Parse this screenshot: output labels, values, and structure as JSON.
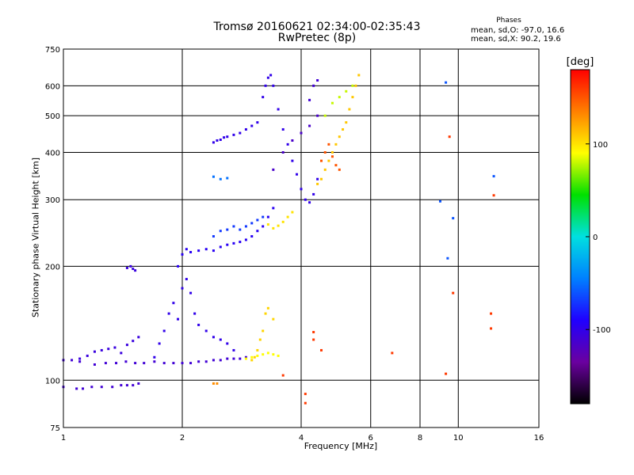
{
  "header": {
    "title_line1": "Tromsø 20160621 02:34:00-02:35:43",
    "title_line2": "RwPretec (8p)",
    "stats_heading": "Phases",
    "stats_o": "mean, sd,O: -97.0, 16.6",
    "stats_x": "mean, sd,X:  90.2, 19.6"
  },
  "chart_data": {
    "type": "scatter",
    "xlabel": "Frequency [MHz]",
    "ylabel": "Stationary phase Virtual Height [km]",
    "xscale": "log",
    "yscale": "log",
    "xlim": [
      1,
      16
    ],
    "ylim": [
      75,
      750
    ],
    "x_ticks": [
      1,
      2,
      4,
      6,
      8,
      10,
      16
    ],
    "x_tick_labels": [
      "1",
      "2",
      "4",
      "6",
      "8",
      "10",
      "16"
    ],
    "y_ticks": [
      75,
      100,
      200,
      300,
      400,
      500,
      600,
      750
    ],
    "y_tick_labels": [
      "75",
      "100",
      "200",
      "300",
      "400",
      "500",
      "600",
      "750"
    ],
    "grid": true,
    "colorbar": {
      "label": "[deg]",
      "range": [
        -180,
        180
      ],
      "ticks": [
        100,
        0,
        -100
      ],
      "tick_labels": [
        "100",
        "0",
        "-100"
      ],
      "colors": [
        "#000000",
        "#6a00a0",
        "#2000ff",
        "#0080ff",
        "#00e0e0",
        "#00e000",
        "#ffff00",
        "#ff8000",
        "#ff0000"
      ]
    },
    "series": [
      {
        "x": [
          1.0,
          1.08,
          1.12,
          1.18,
          1.25,
          1.33,
          1.4,
          1.45,
          1.5,
          1.55
        ],
        "y": [
          96,
          95,
          95,
          96,
          96,
          96,
          97,
          97,
          97,
          98
        ],
        "phase": -110
      },
      {
        "x": [
          1.0,
          1.05,
          1.1
        ],
        "y": [
          113,
          113,
          112
        ],
        "phase": -110
      },
      {
        "x": [
          1.1,
          1.15,
          1.2,
          1.25,
          1.3,
          1.35,
          1.4,
          1.45,
          1.5,
          1.55
        ],
        "y": [
          114,
          116,
          119,
          120,
          121,
          122,
          118,
          124,
          127,
          130
        ],
        "phase": -105
      },
      {
        "x": [
          1.2,
          1.28,
          1.36,
          1.44,
          1.52,
          1.6,
          1.7,
          1.8,
          1.9,
          2.0,
          2.1,
          2.2,
          2.3,
          2.4,
          2.5,
          2.6,
          2.7,
          2.8,
          2.9
        ],
        "y": [
          110,
          111,
          111,
          112,
          111,
          111,
          112,
          111,
          111,
          111,
          111,
          112,
          112,
          113,
          113,
          114,
          114,
          114,
          115
        ],
        "phase": -110
      },
      {
        "x": [
          1.7,
          1.75,
          1.8,
          1.85,
          1.9,
          1.95,
          2.0,
          2.05,
          2.1,
          2.15,
          2.2,
          2.3,
          2.4,
          2.5,
          2.6,
          2.7
        ],
        "y": [
          115,
          125,
          135,
          150,
          160,
          145,
          175,
          185,
          170,
          150,
          140,
          135,
          130,
          128,
          125,
          120
        ],
        "phase": -100
      },
      {
        "x": [
          1.45,
          1.48,
          1.5,
          1.52
        ],
        "y": [
          198,
          200,
          197,
          195
        ],
        "phase": -105
      },
      {
        "x": [
          1.95,
          2.0,
          2.05,
          2.1,
          2.2,
          2.3,
          2.4,
          2.5,
          2.6,
          2.7,
          2.8,
          2.9,
          3.0,
          3.1,
          3.2,
          3.3,
          3.4
        ],
        "y": [
          200,
          215,
          222,
          218,
          220,
          222,
          220,
          225,
          228,
          230,
          232,
          235,
          240,
          248,
          255,
          270,
          285
        ],
        "phase": -95
      },
      {
        "x": [
          2.4,
          2.5,
          2.6,
          2.7,
          2.8,
          2.9,
          3.0,
          3.1,
          3.2
        ],
        "y": [
          240,
          248,
          250,
          255,
          250,
          255,
          260,
          265,
          270
        ],
        "phase": -70
      },
      {
        "x": [
          2.4,
          2.45,
          2.5,
          2.55,
          2.6,
          2.7,
          2.8,
          2.9,
          3.0
        ],
        "y": [
          425,
          430,
          432,
          438,
          440,
          445,
          450,
          460,
          470
        ],
        "phase": -100
      },
      {
        "x": [
          2.4,
          2.5,
          2.6
        ],
        "y": [
          345,
          340,
          342
        ],
        "phase": -50
      },
      {
        "x": [
          3.1,
          3.2,
          3.25,
          3.3,
          3.35,
          3.4,
          3.5,
          3.6,
          3.7,
          3.8,
          3.9,
          4.0,
          4.1,
          4.2,
          4.3,
          4.4
        ],
        "y": [
          480,
          560,
          600,
          630,
          640,
          600,
          520,
          460,
          420,
          380,
          350,
          320,
          300,
          295,
          310,
          340
        ],
        "phase": -100
      },
      {
        "x": [
          3.4,
          3.6,
          3.8,
          4.0,
          4.2,
          4.4
        ],
        "y": [
          360,
          400,
          430,
          450,
          470,
          500
        ],
        "phase": -115
      },
      {
        "x": [
          4.2,
          4.3,
          4.4
        ],
        "y": [
          550,
          600,
          620
        ],
        "phase": -110
      },
      {
        "x": [
          3.3,
          3.4,
          3.5,
          3.6,
          3.7,
          3.8
        ],
        "y": [
          258,
          252,
          256,
          262,
          270,
          278
        ],
        "phase": 100
      },
      {
        "x": [
          4.4,
          4.5,
          4.6,
          4.7,
          4.8,
          4.9,
          5.0,
          5.1,
          5.2,
          5.3,
          5.4,
          5.5,
          5.6
        ],
        "y": [
          330,
          340,
          360,
          380,
          400,
          420,
          440,
          460,
          480,
          520,
          560,
          600,
          640
        ],
        "phase": 110
      },
      {
        "x": [
          4.5,
          4.6,
          4.7,
          4.8,
          4.9,
          5.0
        ],
        "y": [
          380,
          400,
          420,
          390,
          370,
          360
        ],
        "phase": 150
      },
      {
        "x": [
          4.6,
          4.8,
          5.0,
          5.2,
          5.4
        ],
        "y": [
          500,
          540,
          560,
          580,
          600
        ],
        "phase": 80
      },
      {
        "x": [
          3.0,
          3.05,
          3.1,
          3.15,
          3.2,
          3.25,
          3.3,
          3.4
        ],
        "y": [
          113,
          115,
          120,
          128,
          135,
          150,
          155,
          145
        ],
        "phase": 105
      },
      {
        "x": [
          2.9,
          3.0,
          3.1,
          3.2,
          3.3,
          3.4,
          3.5
        ],
        "y": [
          114,
          115,
          116,
          117,
          118,
          117,
          116
        ],
        "phase": 90
      },
      {
        "x": [
          2.4,
          2.45
        ],
        "y": [
          98,
          98
        ],
        "phase": 130
      },
      {
        "x": [
          3.6,
          4.3,
          4.5,
          4.3,
          4.1,
          4.1,
          6.8,
          9.5,
          9.7,
          9.3,
          12.1,
          12.1,
          12.3
        ],
        "y": [
          103,
          134,
          120,
          128,
          92,
          87,
          118,
          440,
          170,
          104,
          150,
          137,
          308
        ],
        "phase": 160
      },
      {
        "x": [
          9.0,
          9.4,
          9.7,
          12.3,
          9.3
        ],
        "y": [
          297,
          210,
          268,
          346,
          612
        ],
        "phase": -60
      }
    ]
  }
}
